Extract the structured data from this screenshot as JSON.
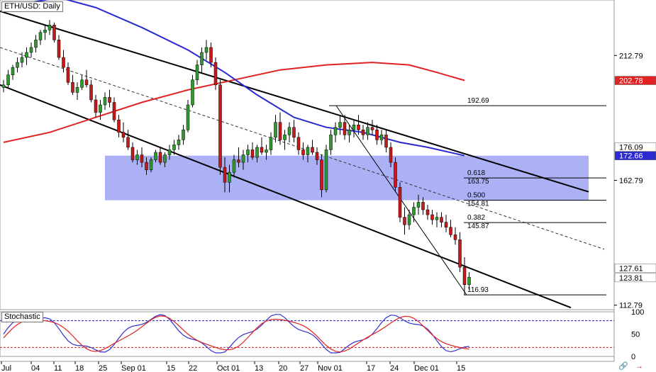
{
  "window": {
    "title": "ETH/USD: Daily"
  },
  "stochastic": {
    "title": "Stochastic",
    "levels": [
      "100",
      "50",
      "0"
    ]
  },
  "colors": {
    "bull": "#2f9a2f",
    "bear": "#c81818",
    "ma_fast": "#2a2ad0",
    "ma_slow": "#e02222",
    "zone": "#9ea3f5",
    "channel": "#000000",
    "stoch_k": "#3030d0",
    "stoch_d": "#e02020",
    "level_blue": "#2020c8",
    "level_red": "#d02020"
  },
  "chart_data": {
    "type": "candlestick",
    "symbol": "ETH/USD",
    "timeframe": "Daily",
    "y_ticks": [
      "212.79",
      "162.79",
      "112.79"
    ],
    "y_range": [
      111,
      235
    ],
    "x_labels": [
      "Jul",
      "04",
      "11",
      "18",
      "25",
      "Sep 01",
      "15",
      "22",
      "Oct 01",
      "13",
      "20",
      "27",
      "Nov 01",
      "17",
      "24",
      "Dec 01",
      "15"
    ],
    "price_badges": [
      {
        "label": "202.78",
        "value": 202.78,
        "color": "#e02222",
        "text_color": "#ffffff"
      },
      {
        "label": "176.09",
        "value": 176.09,
        "color": "#ffffff",
        "text_color": "#000000"
      },
      {
        "label": "172.66",
        "value": 172.66,
        "color": "#2a2ad0",
        "text_color": "#ffffff"
      },
      {
        "label": "127.61",
        "value": 127.61,
        "color": "#ffffff",
        "text_color": "#000000"
      },
      {
        "label": "123.81",
        "value": 123.81,
        "color": "#ffffff",
        "text_color": "#000000"
      }
    ],
    "fib_levels": [
      {
        "ratio": "",
        "price": "192.69",
        "value": 192.69
      },
      {
        "ratio": "0.618",
        "price": "163.75",
        "value": 163.75
      },
      {
        "ratio": "0.500",
        "price": "154.81",
        "value": 154.81
      },
      {
        "ratio": "0.382",
        "price": "145.87",
        "value": 145.87
      },
      {
        "ratio": "",
        "price": "116.93",
        "value": 116.93
      }
    ],
    "zone": {
      "from": 154.81,
      "to": 172.66
    },
    "candles": [
      [
        0,
        200,
        203,
        198,
        201
      ],
      [
        1,
        201,
        207,
        200,
        205
      ],
      [
        2,
        205,
        209,
        203,
        208
      ],
      [
        3,
        208,
        212,
        206,
        210
      ],
      [
        4,
        210,
        214,
        208,
        212
      ],
      [
        5,
        212,
        216,
        209,
        214
      ],
      [
        6,
        214,
        218,
        212,
        216
      ],
      [
        7,
        216,
        221,
        214,
        219
      ],
      [
        8,
        219,
        223,
        217,
        222
      ],
      [
        9,
        222,
        225,
        219,
        223
      ],
      [
        10,
        223,
        227,
        221,
        225
      ],
      [
        11,
        225,
        226,
        218,
        219
      ],
      [
        12,
        219,
        221,
        211,
        212
      ],
      [
        13,
        212,
        215,
        206,
        208
      ],
      [
        14,
        208,
        210,
        201,
        202
      ],
      [
        15,
        202,
        205,
        197,
        198
      ],
      [
        16,
        198,
        202,
        195,
        200
      ],
      [
        17,
        200,
        205,
        199,
        203
      ],
      [
        18,
        203,
        207,
        200,
        201
      ],
      [
        19,
        201,
        203,
        194,
        195
      ],
      [
        20,
        195,
        197,
        188,
        190
      ],
      [
        21,
        190,
        195,
        187,
        193
      ],
      [
        22,
        193,
        198,
        191,
        196
      ],
      [
        23,
        196,
        199,
        192,
        194
      ],
      [
        24,
        194,
        196,
        186,
        187
      ],
      [
        25,
        187,
        189,
        180,
        182
      ],
      [
        26,
        182,
        186,
        178,
        180
      ],
      [
        27,
        180,
        183,
        175,
        176
      ],
      [
        28,
        176,
        178,
        170,
        171
      ],
      [
        29,
        171,
        175,
        169,
        173
      ],
      [
        30,
        173,
        176,
        168,
        170
      ],
      [
        31,
        170,
        172,
        165,
        167
      ],
      [
        32,
        167,
        172,
        166,
        171
      ],
      [
        33,
        171,
        175,
        170,
        174
      ],
      [
        34,
        174,
        176,
        169,
        170
      ],
      [
        35,
        170,
        174,
        168,
        173
      ],
      [
        36,
        173,
        177,
        171,
        175
      ],
      [
        37,
        175,
        179,
        173,
        177
      ],
      [
        38,
        177,
        181,
        175,
        179
      ],
      [
        39,
        179,
        185,
        177,
        183
      ],
      [
        40,
        183,
        195,
        182,
        193
      ],
      [
        41,
        193,
        205,
        192,
        203
      ],
      [
        42,
        203,
        211,
        201,
        209
      ],
      [
        43,
        209,
        216,
        206,
        214
      ],
      [
        44,
        214,
        219,
        211,
        216
      ],
      [
        45,
        216,
        218,
        208,
        210
      ],
      [
        46,
        210,
        212,
        199,
        201
      ],
      [
        47,
        201,
        203,
        165,
        168
      ],
      [
        48,
        168,
        172,
        158,
        162
      ],
      [
        49,
        162,
        169,
        158,
        166
      ],
      [
        50,
        166,
        173,
        164,
        171
      ],
      [
        51,
        171,
        176,
        168,
        170
      ],
      [
        52,
        170,
        175,
        167,
        173
      ],
      [
        53,
        173,
        177,
        170,
        175
      ],
      [
        54,
        175,
        178,
        171,
        172
      ],
      [
        55,
        172,
        177,
        170,
        176
      ],
      [
        56,
        176,
        180,
        173,
        174
      ],
      [
        57,
        174,
        177,
        171,
        175
      ],
      [
        58,
        175,
        182,
        173,
        180
      ],
      [
        59,
        180,
        189,
        178,
        186
      ],
      [
        60,
        186,
        190,
        177,
        179
      ],
      [
        61,
        179,
        183,
        175,
        181
      ],
      [
        62,
        181,
        186,
        178,
        184
      ],
      [
        63,
        184,
        187,
        178,
        180
      ],
      [
        64,
        180,
        182,
        173,
        175
      ],
      [
        65,
        175,
        178,
        171,
        173
      ],
      [
        66,
        173,
        177,
        170,
        176
      ],
      [
        67,
        176,
        179,
        173,
        174
      ],
      [
        68,
        174,
        176,
        169,
        171
      ],
      [
        69,
        171,
        173,
        156,
        159
      ],
      [
        70,
        159,
        177,
        158,
        175
      ],
      [
        71,
        175,
        183,
        173,
        181
      ],
      [
        72,
        181,
        186,
        178,
        184
      ],
      [
        73,
        184,
        189,
        181,
        186
      ],
      [
        74,
        186,
        189,
        179,
        181
      ],
      [
        75,
        181,
        185,
        178,
        183
      ],
      [
        76,
        183,
        187,
        180,
        185
      ],
      [
        77,
        185,
        189,
        181,
        183
      ],
      [
        78,
        183,
        185,
        179,
        181
      ],
      [
        79,
        181,
        186,
        179,
        184
      ],
      [
        80,
        184,
        187,
        181,
        183
      ],
      [
        81,
        183,
        185,
        177,
        179
      ],
      [
        82,
        179,
        183,
        177,
        181
      ],
      [
        83,
        181,
        183,
        174,
        176
      ],
      [
        84,
        176,
        178,
        168,
        170
      ],
      [
        85,
        170,
        172,
        158,
        160
      ],
      [
        86,
        160,
        162,
        146,
        148
      ],
      [
        87,
        148,
        152,
        141,
        145
      ],
      [
        88,
        145,
        151,
        143,
        149
      ],
      [
        89,
        149,
        154,
        146,
        152
      ],
      [
        90,
        152,
        157,
        149,
        154
      ],
      [
        91,
        154,
        156,
        149,
        151
      ],
      [
        92,
        151,
        153,
        147,
        149
      ],
      [
        93,
        149,
        151,
        145,
        147
      ],
      [
        94,
        147,
        150,
        144,
        148
      ],
      [
        95,
        148,
        150,
        144,
        146
      ],
      [
        96,
        146,
        149,
        142,
        144
      ],
      [
        97,
        144,
        147,
        140,
        141
      ],
      [
        98,
        141,
        144,
        137,
        139
      ],
      [
        99,
        139,
        142,
        126,
        128
      ],
      [
        100,
        128,
        132,
        117,
        121
      ],
      [
        101,
        121,
        126,
        119,
        124
      ]
    ],
    "ma_fast": [
      [
        0,
        232
      ],
      [
        12,
        236
      ],
      [
        20,
        232
      ],
      [
        30,
        224
      ],
      [
        40,
        215
      ],
      [
        48,
        206
      ],
      [
        55,
        197
      ],
      [
        63,
        188
      ],
      [
        70,
        184
      ],
      [
        78,
        182
      ],
      [
        86,
        178
      ],
      [
        92,
        176
      ],
      [
        100,
        172.66
      ]
    ],
    "ma_slow": [
      [
        0,
        178
      ],
      [
        10,
        182
      ],
      [
        20,
        188
      ],
      [
        30,
        194
      ],
      [
        40,
        199
      ],
      [
        50,
        203
      ],
      [
        60,
        207
      ],
      [
        70,
        209
      ],
      [
        80,
        210
      ],
      [
        88,
        209
      ],
      [
        94,
        206
      ],
      [
        100,
        202.78
      ]
    ]
  }
}
